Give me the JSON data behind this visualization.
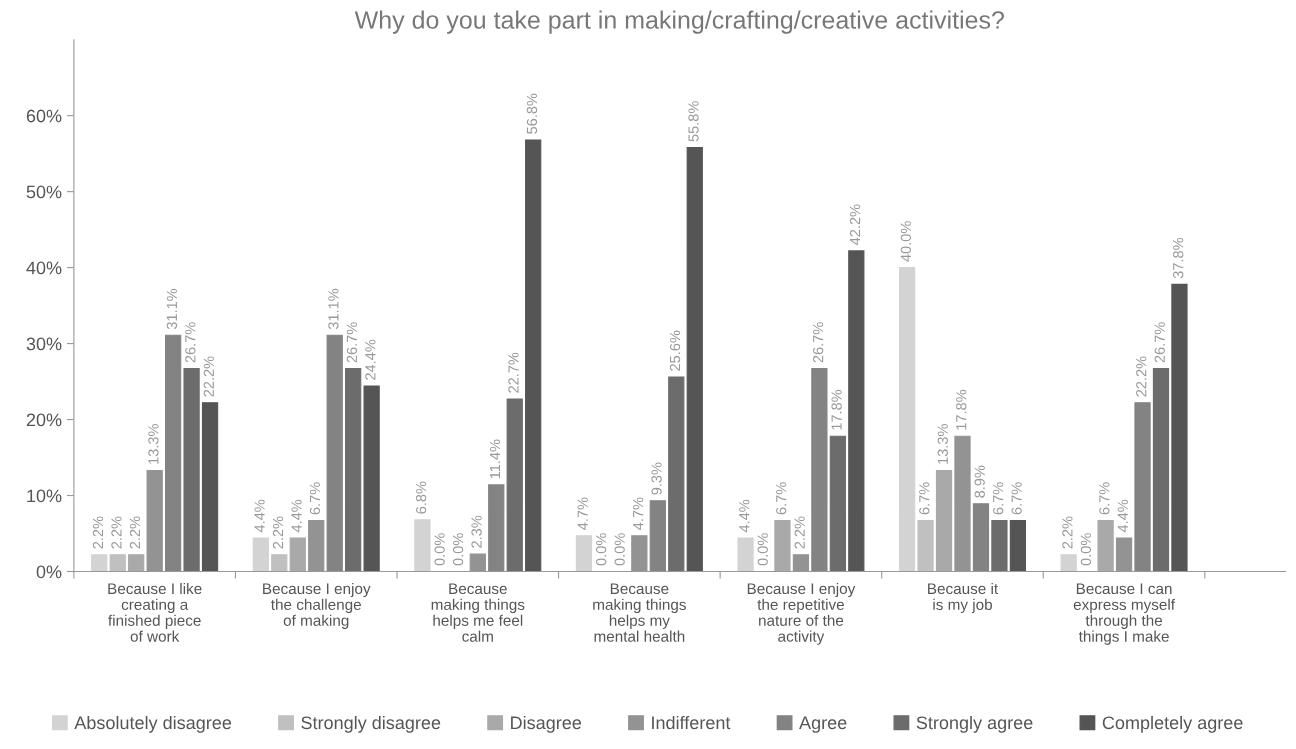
{
  "chart_data": {
    "type": "bar",
    "title": "Why do you take part in making/crafting/creative activities?",
    "categories": [
      "Because I like\ncreating a\nfinished piece\nof work",
      "Because I enjoy\nthe challenge\nof making",
      "Because\nmaking things\nhelps me feel\ncalm",
      "Because\nmaking things\nhelps my\nmental health",
      "Because I enjoy\nthe repetitive\nnature of the\nactivity",
      "Because it\nis my job",
      "Because I can\nexpress myself\nthrough the\nthings I make"
    ],
    "series": [
      {
        "name": "Absolutely disagree",
        "color": "#d3d3d3",
        "values": [
          2.2,
          4.4,
          6.8,
          4.7,
          4.4,
          40.0,
          2.2
        ],
        "value_labels": [
          "2.2%",
          "4.4%",
          "6.8%",
          "4.7%",
          "4.4%",
          "40.0%",
          "2.2%"
        ]
      },
      {
        "name": "Strongly disagree",
        "color": "#c0c0c0",
        "values": [
          2.2,
          2.2,
          0.0,
          0.0,
          0.0,
          6.7,
          0.0
        ],
        "value_labels": [
          "2.2%",
          "2.2%",
          "0.0%",
          "0.0%",
          "0.0%",
          "6.7%",
          "0.0%"
        ]
      },
      {
        "name": "Disagree",
        "color": "#a9a9a9",
        "values": [
          2.2,
          4.4,
          0.0,
          0.0,
          6.7,
          13.3,
          6.7
        ],
        "value_labels": [
          "2.2%",
          "4.4%",
          "0.0%",
          "0.0%",
          "6.7%",
          "13.3%",
          "6.7%"
        ]
      },
      {
        "name": "Indifferent",
        "color": "#939393",
        "values": [
          13.3,
          6.7,
          2.3,
          4.7,
          2.2,
          17.8,
          4.4
        ],
        "value_labels": [
          "13.3%",
          "6.7%",
          "2.3%",
          "4.7%",
          "2.2%",
          "17.8%",
          "4.4%"
        ]
      },
      {
        "name": "Agree",
        "color": "#838383",
        "values": [
          31.1,
          31.1,
          11.4,
          9.3,
          26.7,
          8.9,
          22.2
        ],
        "value_labels": [
          "31.1%",
          "31.1%",
          "11.4%",
          "9.3%",
          "26.7%",
          "8.9%",
          "22.2%"
        ]
      },
      {
        "name": "Strongly agree",
        "color": "#6c6c6c",
        "values": [
          26.7,
          26.7,
          22.7,
          25.6,
          17.8,
          6.7,
          26.7
        ],
        "value_labels": [
          "26.7%",
          "26.7%",
          "22.7%",
          "25.6%",
          "17.8%",
          "6.7%",
          "26.7%"
        ]
      },
      {
        "name": "Completely agree",
        "color": "#555555",
        "values": [
          22.2,
          24.4,
          56.8,
          55.8,
          42.2,
          6.7,
          37.8
        ],
        "value_labels": [
          "22.2%",
          "24.4%",
          "56.8%",
          "55.8%",
          "42.2%",
          "6.7%",
          "37.8%"
        ]
      }
    ],
    "ylim": [
      0,
      70
    ],
    "yticks": [
      {
        "value": 0,
        "label": "0%"
      },
      {
        "value": 10,
        "label": "10%"
      },
      {
        "value": 20,
        "label": "20%"
      },
      {
        "value": 30,
        "label": "30%"
      },
      {
        "value": 40,
        "label": "40%"
      },
      {
        "value": 50,
        "label": "50%"
      },
      {
        "value": 60,
        "label": "60%"
      }
    ],
    "grid": false,
    "legend": "bottom"
  }
}
